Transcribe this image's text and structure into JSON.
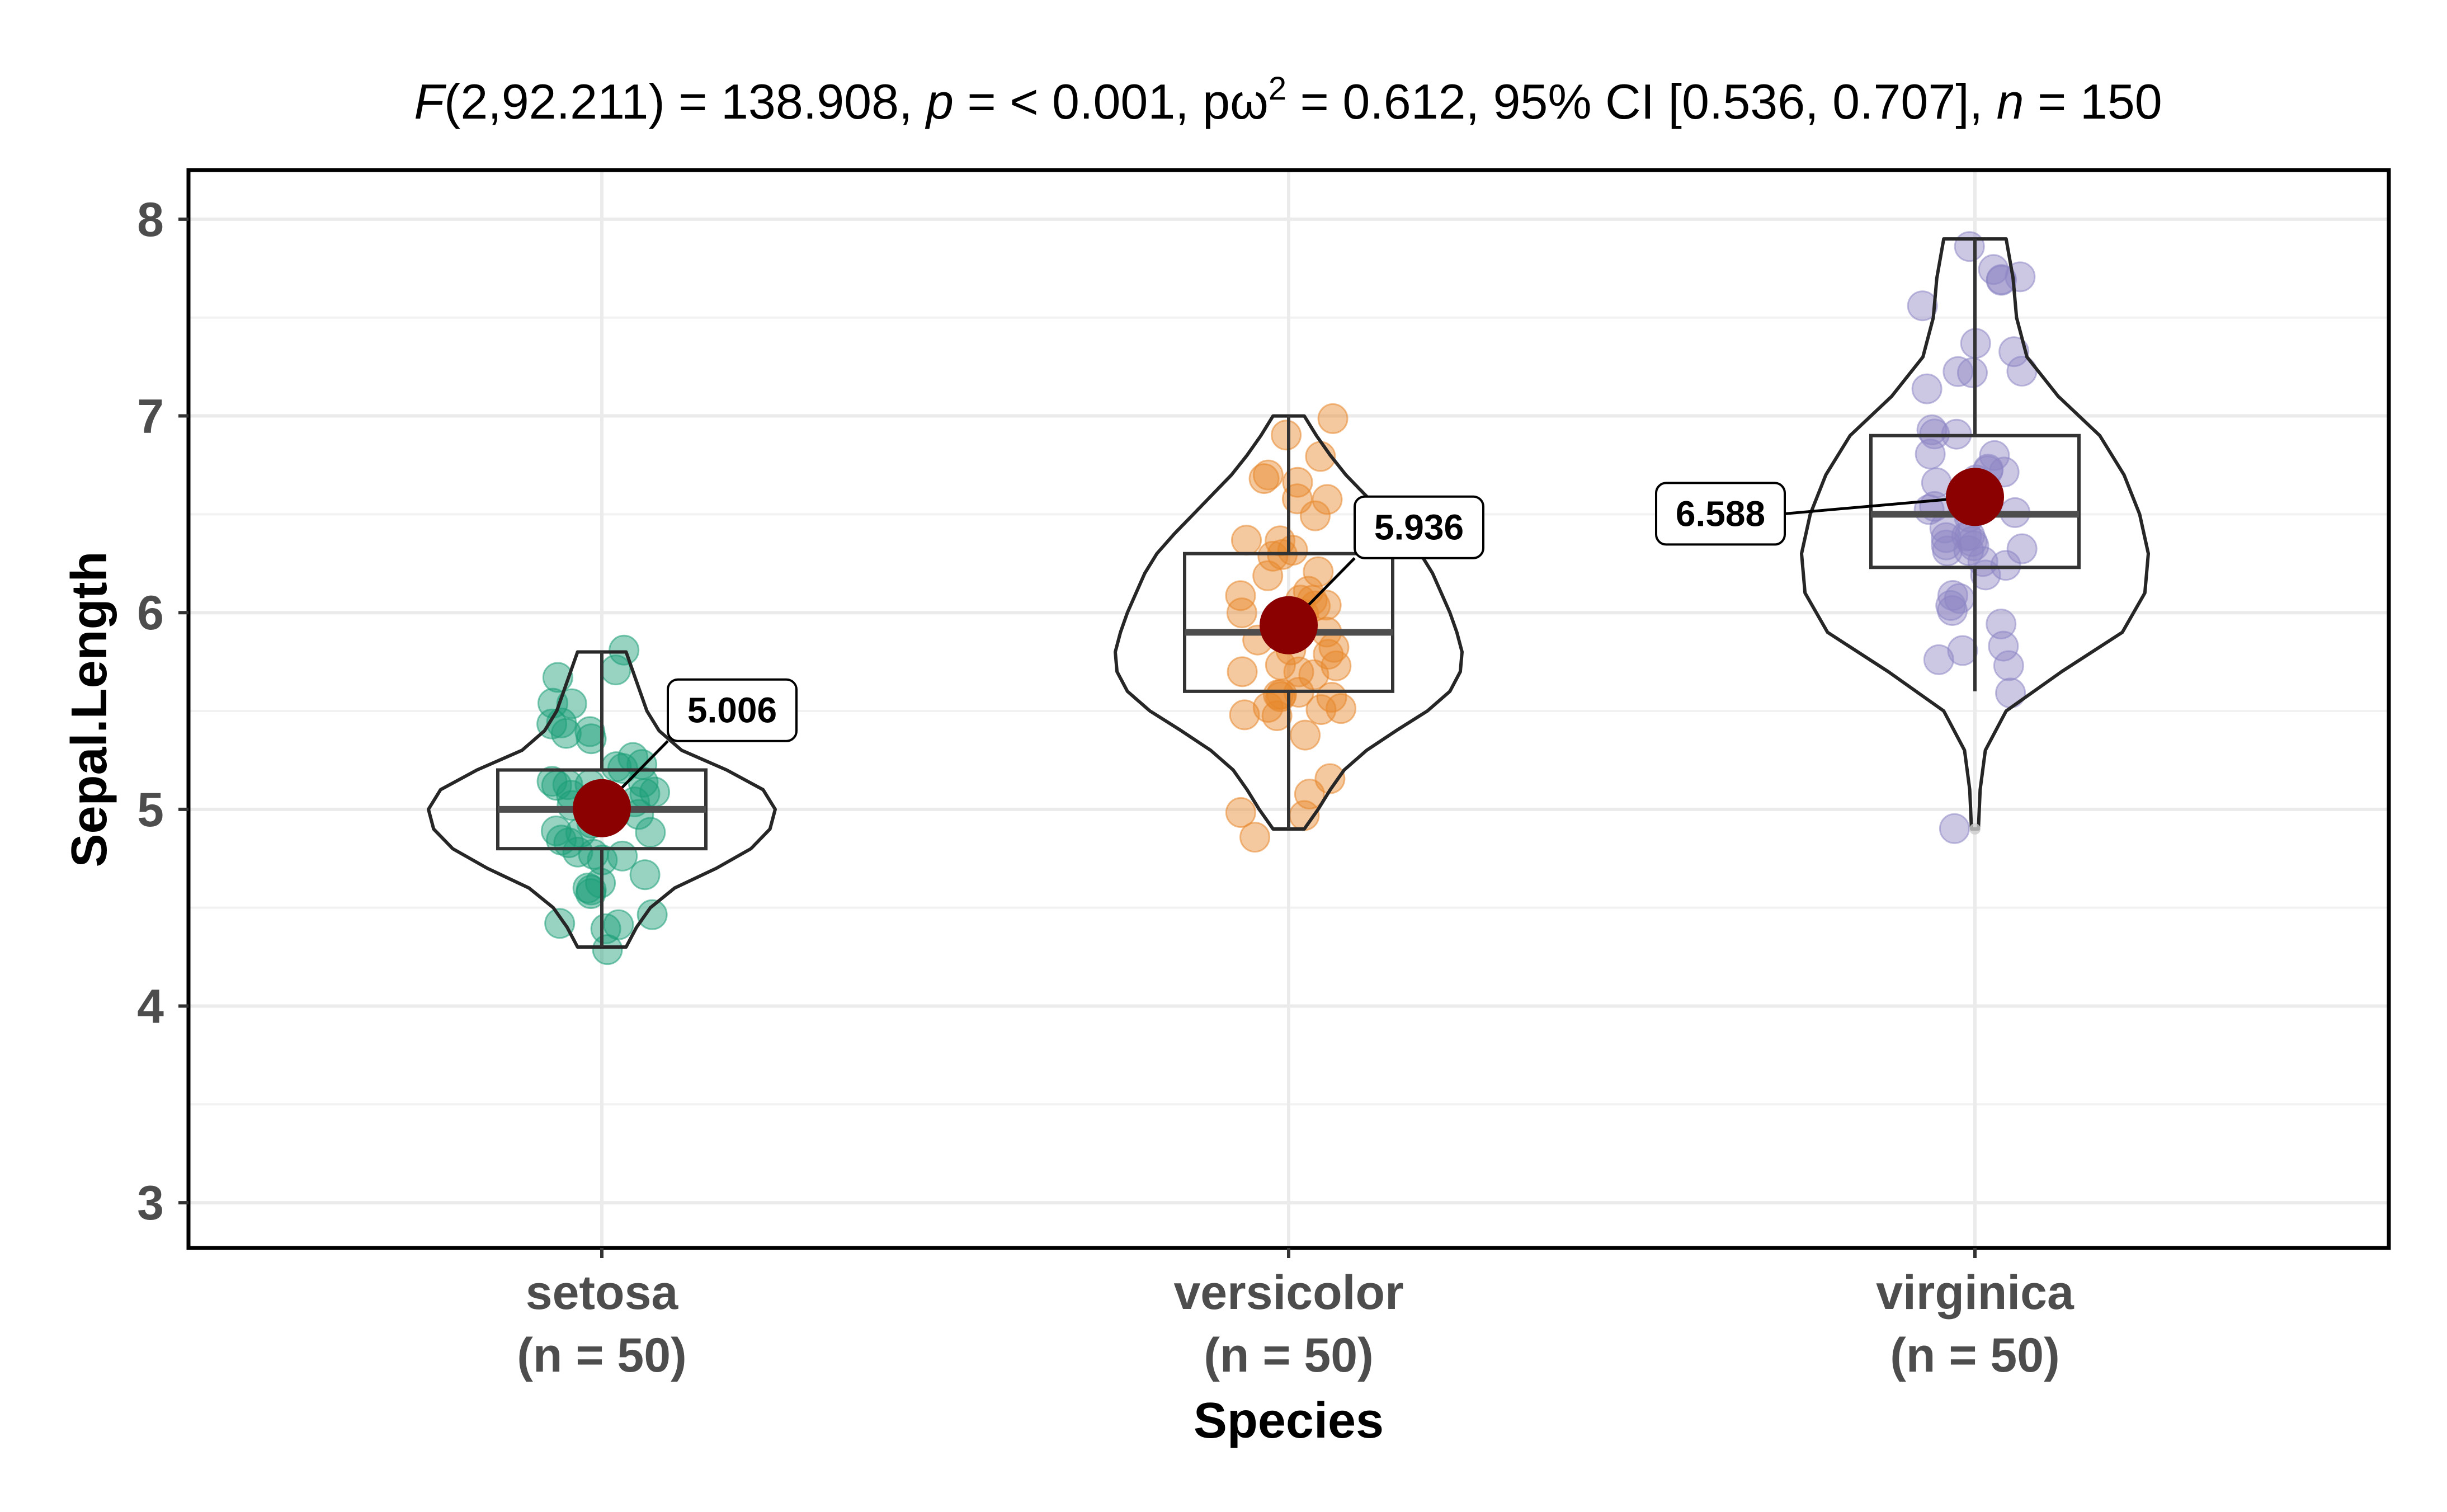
{
  "chart_data": {
    "type": "violin-box-scatter",
    "title_parts": {
      "f_symbol": "F",
      "f_args": "(2,92.211) = 138.908, ",
      "p_symbol": "p",
      "p_value": " = < 0.001, pω",
      "omega_sup": "2",
      "effect": " = 0.612, 95% CI [0.536, 0.707], ",
      "n_symbol": "n",
      "n_value": " = 150"
    },
    "xlabel": "Species",
    "ylabel": "Sepal.Length",
    "ylim": [
      2.77,
      8.25
    ],
    "y_ticks": [
      3,
      4,
      5,
      6,
      7,
      8
    ],
    "y_tick_labels": [
      "3",
      "4",
      "5",
      "6",
      "7",
      "8"
    ],
    "categories": [
      "setosa",
      "versicolor",
      "virginica"
    ],
    "category_n_labels": [
      "(n = 50)",
      "(n = 50)",
      "(n = 50)"
    ],
    "series_colors": [
      "#1b9e77",
      "#e7872b",
      "#8d86c4"
    ],
    "mean_color": "#8b0000",
    "groups": [
      {
        "name": "setosa",
        "n": 50,
        "mean": 5.006,
        "mean_label": "5.006",
        "box": {
          "q1": 4.8,
          "median": 5.0,
          "q3": 5.2,
          "whisker_low": 4.3,
          "whisker_high": 5.8
        },
        "violin": {
          "y": [
            4.3,
            4.4,
            4.5,
            4.6,
            4.7,
            4.8,
            4.9,
            5.0,
            5.1,
            5.2,
            5.3,
            5.4,
            5.5,
            5.6,
            5.7,
            5.8
          ],
          "width": [
            0.14,
            0.2,
            0.28,
            0.42,
            0.66,
            0.86,
            0.97,
            1.0,
            0.93,
            0.72,
            0.46,
            0.33,
            0.26,
            0.22,
            0.18,
            0.14
          ]
        },
        "points": [
          5.1,
          4.9,
          4.7,
          4.6,
          5.0,
          5.4,
          4.6,
          5.0,
          4.4,
          4.9,
          5.4,
          4.8,
          4.8,
          4.3,
          5.8,
          5.7,
          5.4,
          5.1,
          5.7,
          5.1,
          5.4,
          5.1,
          4.6,
          5.1,
          4.8,
          5.0,
          5.0,
          5.2,
          5.2,
          4.7,
          4.8,
          5.4,
          5.2,
          5.5,
          4.9,
          5.0,
          5.5,
          4.9,
          4.4,
          5.1,
          5.0,
          4.5,
          4.4,
          5.0,
          5.1,
          4.8,
          5.1,
          4.6,
          5.3,
          5.0
        ]
      },
      {
        "name": "versicolor",
        "n": 50,
        "mean": 5.936,
        "mean_label": "5.936",
        "box": {
          "q1": 5.6,
          "median": 5.9,
          "q3": 6.3,
          "whisker_low": 4.9,
          "whisker_high": 7.0
        },
        "violin": {
          "y": [
            4.9,
            5.0,
            5.1,
            5.2,
            5.3,
            5.4,
            5.5,
            5.6,
            5.7,
            5.8,
            5.9,
            6.0,
            6.1,
            6.2,
            6.3,
            6.4,
            6.5,
            6.6,
            6.7,
            6.8,
            6.9,
            7.0
          ],
          "width": [
            0.09,
            0.17,
            0.24,
            0.32,
            0.45,
            0.62,
            0.8,
            0.93,
            0.99,
            1.0,
            0.97,
            0.93,
            0.88,
            0.83,
            0.76,
            0.66,
            0.55,
            0.44,
            0.33,
            0.24,
            0.16,
            0.09
          ]
        },
        "points": [
          7.0,
          6.4,
          6.9,
          5.5,
          6.5,
          5.7,
          6.3,
          4.9,
          6.6,
          5.2,
          5.0,
          5.9,
          6.0,
          6.1,
          5.6,
          6.7,
          5.6,
          5.8,
          6.2,
          5.6,
          5.9,
          6.1,
          6.3,
          6.1,
          6.4,
          6.6,
          6.8,
          6.7,
          6.0,
          5.7,
          5.5,
          5.5,
          5.8,
          6.0,
          5.4,
          6.0,
          6.7,
          6.3,
          5.6,
          5.5,
          5.5,
          6.1,
          5.8,
          5.0,
          5.6,
          5.7,
          5.7,
          6.2,
          5.1,
          5.7
        ]
      },
      {
        "name": "virginica",
        "n": 50,
        "mean": 6.588,
        "mean_label": "6.588",
        "box": {
          "q1": 6.23,
          "median": 6.5,
          "q3": 6.9,
          "whisker_low": 5.6,
          "whisker_high": 7.9
        },
        "outliers": [
          4.9
        ],
        "violin": {
          "y": [
            4.9,
            5.1,
            5.3,
            5.5,
            5.7,
            5.9,
            6.1,
            6.3,
            6.5,
            6.7,
            6.9,
            7.1,
            7.3,
            7.5,
            7.7,
            7.9
          ],
          "width": [
            0.02,
            0.03,
            0.06,
            0.18,
            0.5,
            0.85,
            0.98,
            1.0,
            0.95,
            0.86,
            0.72,
            0.48,
            0.3,
            0.24,
            0.22,
            0.18
          ]
        },
        "points": [
          6.3,
          5.8,
          7.1,
          6.3,
          6.5,
          7.6,
          4.9,
          7.3,
          6.7,
          7.2,
          6.5,
          6.4,
          6.8,
          5.7,
          5.8,
          6.4,
          6.5,
          7.7,
          7.7,
          6.0,
          6.9,
          5.6,
          7.7,
          6.3,
          6.7,
          7.2,
          6.2,
          6.1,
          6.4,
          7.2,
          7.4,
          7.9,
          6.4,
          6.3,
          6.1,
          7.7,
          6.3,
          6.4,
          6.0,
          6.9,
          6.7,
          6.9,
          5.8,
          6.8,
          6.7,
          6.7,
          6.3,
          6.5,
          6.2,
          5.9
        ]
      }
    ]
  }
}
